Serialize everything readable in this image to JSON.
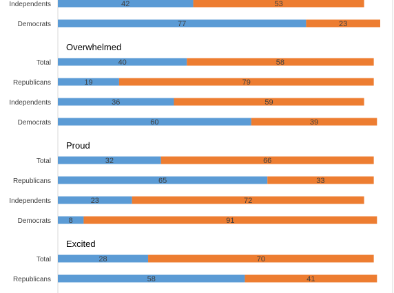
{
  "chart_data": {
    "type": "bar",
    "orientation": "horizontal",
    "stacked": true,
    "grid": false,
    "legend": "none",
    "colors": {
      "first": "#5b9bd5",
      "second": "#ed7d31",
      "axis": "#d9d9d9",
      "label": "#404040"
    },
    "groups": [
      {
        "title": "",
        "rows": [
          {
            "label": "Independents",
            "values": [
              42,
              53
            ]
          },
          {
            "label": "Democrats",
            "values": [
              77,
              23
            ]
          }
        ]
      },
      {
        "title": "Overwhelmed",
        "rows": [
          {
            "label": "Total",
            "values": [
              40,
              58
            ]
          },
          {
            "label": "Republicans",
            "values": [
              19,
              79
            ]
          },
          {
            "label": "Independents",
            "values": [
              36,
              59
            ]
          },
          {
            "label": "Democrats",
            "values": [
              60,
              39
            ]
          }
        ]
      },
      {
        "title": "Proud",
        "rows": [
          {
            "label": "Total",
            "values": [
              32,
              66
            ]
          },
          {
            "label": "Republicans",
            "values": [
              65,
              33
            ]
          },
          {
            "label": "Independents",
            "values": [
              23,
              72
            ]
          },
          {
            "label": "Democrats",
            "values": [
              8,
              91
            ]
          }
        ]
      },
      {
        "title": "Excited",
        "rows": [
          {
            "label": "Total",
            "values": [
              28,
              70
            ]
          },
          {
            "label": "Republicans",
            "values": [
              58,
              41
            ]
          }
        ]
      }
    ]
  }
}
